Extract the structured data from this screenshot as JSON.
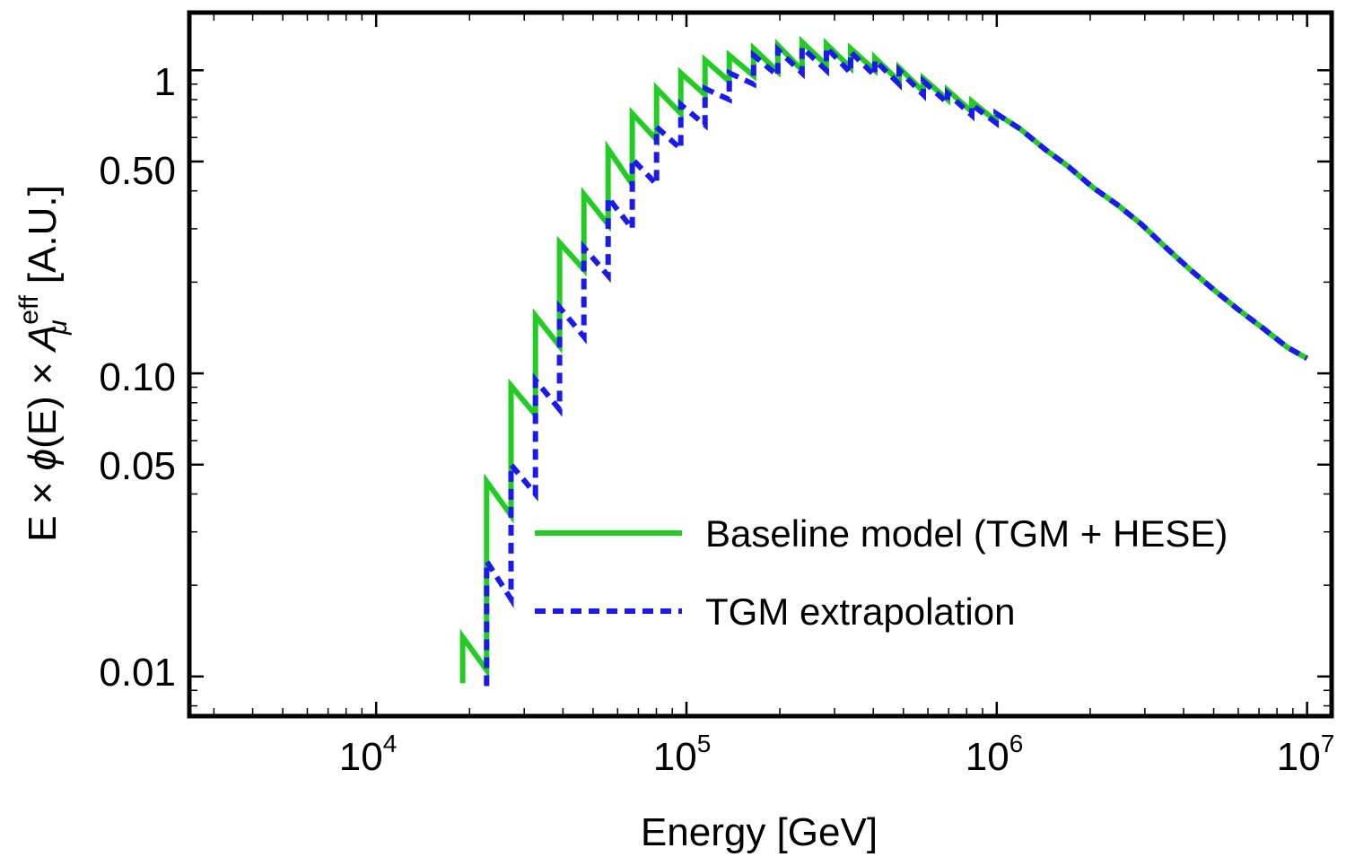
{
  "chart_data": {
    "type": "line",
    "xscale": "log",
    "yscale": "log",
    "xlabel": "Energy [GeV]",
    "ylabel_parts": {
      "main": "E × ",
      "phi": "ϕ",
      "mid": "(E) × ",
      "A": "A",
      "sup": "eff",
      "sub": "μ",
      "units": " [A.U.]"
    },
    "xlim": [
      2500,
      12000000
    ],
    "ylim": [
      0.0074,
      1.55
    ],
    "x_ticks": [
      {
        "base": "10",
        "exp": "4",
        "value": 10000
      },
      {
        "base": "10",
        "exp": "5",
        "value": 100000
      },
      {
        "base": "10",
        "exp": "6",
        "value": 1000000
      },
      {
        "base": "10",
        "exp": "7",
        "value": 10000000
      }
    ],
    "y_ticks": [
      {
        "label": "1",
        "value": 1
      },
      {
        "label": "0.50",
        "value": 0.5
      },
      {
        "label": "0.10",
        "value": 0.1
      },
      {
        "label": "0.05",
        "value": 0.05
      },
      {
        "label": "0.01",
        "value": 0.01
      }
    ],
    "legend": {
      "position": "lower-right"
    },
    "series": [
      {
        "name": "Baseline model (TGM + HESE)",
        "color": "#22cc22",
        "dash": "solid",
        "x": [
          19000,
          19000,
          22700,
          22700,
          27200,
          27200,
          32600,
          32600,
          39000,
          39000,
          46700,
          46700,
          55900,
          55900,
          66900,
          66900,
          80100,
          80100,
          95900,
          95900,
          114800,
          114800,
          137400,
          137400,
          164500,
          164500,
          197000,
          197000,
          235800,
          235800,
          282300,
          282300,
          338000,
          338000,
          404600,
          404600,
          484400,
          484400,
          580000,
          580000,
          694300,
          694300,
          831200,
          831200,
          995100,
          995100,
          1191000,
          1426000,
          1707000,
          2044000,
          2447000,
          2929000,
          3507000,
          4198000,
          5026000,
          6017000,
          7204000,
          8624000,
          10000000
        ],
        "y": [
          0.0095,
          0.0135,
          0.0105,
          0.044,
          0.034,
          0.091,
          0.073,
          0.155,
          0.123,
          0.27,
          0.22,
          0.39,
          0.31,
          0.55,
          0.42,
          0.72,
          0.59,
          0.87,
          0.72,
          0.98,
          0.83,
          1.08,
          0.92,
          1.12,
          0.96,
          1.18,
          0.99,
          1.21,
          1.0,
          1.24,
          1.04,
          1.22,
          1.02,
          1.18,
          1.0,
          1.1,
          0.92,
          1.02,
          0.85,
          0.94,
          0.8,
          0.86,
          0.73,
          0.79,
          0.68,
          0.72,
          0.64,
          0.55,
          0.48,
          0.41,
          0.36,
          0.31,
          0.26,
          0.22,
          0.188,
          0.162,
          0.141,
          0.122,
          0.112
        ]
      },
      {
        "name": "TGM extrapolation",
        "color": "#1a1aee",
        "dash": "dotted",
        "x": [
          22700,
          22700,
          27200,
          27200,
          32600,
          32600,
          39000,
          39000,
          46700,
          46700,
          55900,
          55900,
          66900,
          66900,
          80100,
          80100,
          95900,
          95900,
          114800,
          114800,
          137400,
          137400,
          164500,
          164500,
          197000,
          197000,
          235800,
          235800,
          282300,
          282300,
          338000,
          338000,
          404600,
          404600,
          484400,
          484400,
          580000,
          580000,
          694300,
          694300,
          831200,
          831200,
          995100,
          995100,
          1191000,
          1426000,
          1707000,
          2044000,
          2447000,
          2929000,
          3507000,
          4198000,
          5026000,
          6017000,
          7204000,
          8624000,
          10000000
        ],
        "y": [
          0.0093,
          0.024,
          0.018,
          0.05,
          0.04,
          0.095,
          0.076,
          0.165,
          0.132,
          0.26,
          0.21,
          0.38,
          0.3,
          0.51,
          0.42,
          0.65,
          0.55,
          0.77,
          0.66,
          0.87,
          0.8,
          0.98,
          0.9,
          1.12,
          0.96,
          1.17,
          0.98,
          1.19,
          1.0,
          1.19,
          0.98,
          1.15,
          0.96,
          1.08,
          0.9,
          1.0,
          0.83,
          0.92,
          0.78,
          0.84,
          0.71,
          0.77,
          0.67,
          0.72,
          0.64,
          0.55,
          0.48,
          0.41,
          0.36,
          0.31,
          0.26,
          0.22,
          0.188,
          0.162,
          0.141,
          0.122,
          0.112
        ]
      }
    ]
  }
}
